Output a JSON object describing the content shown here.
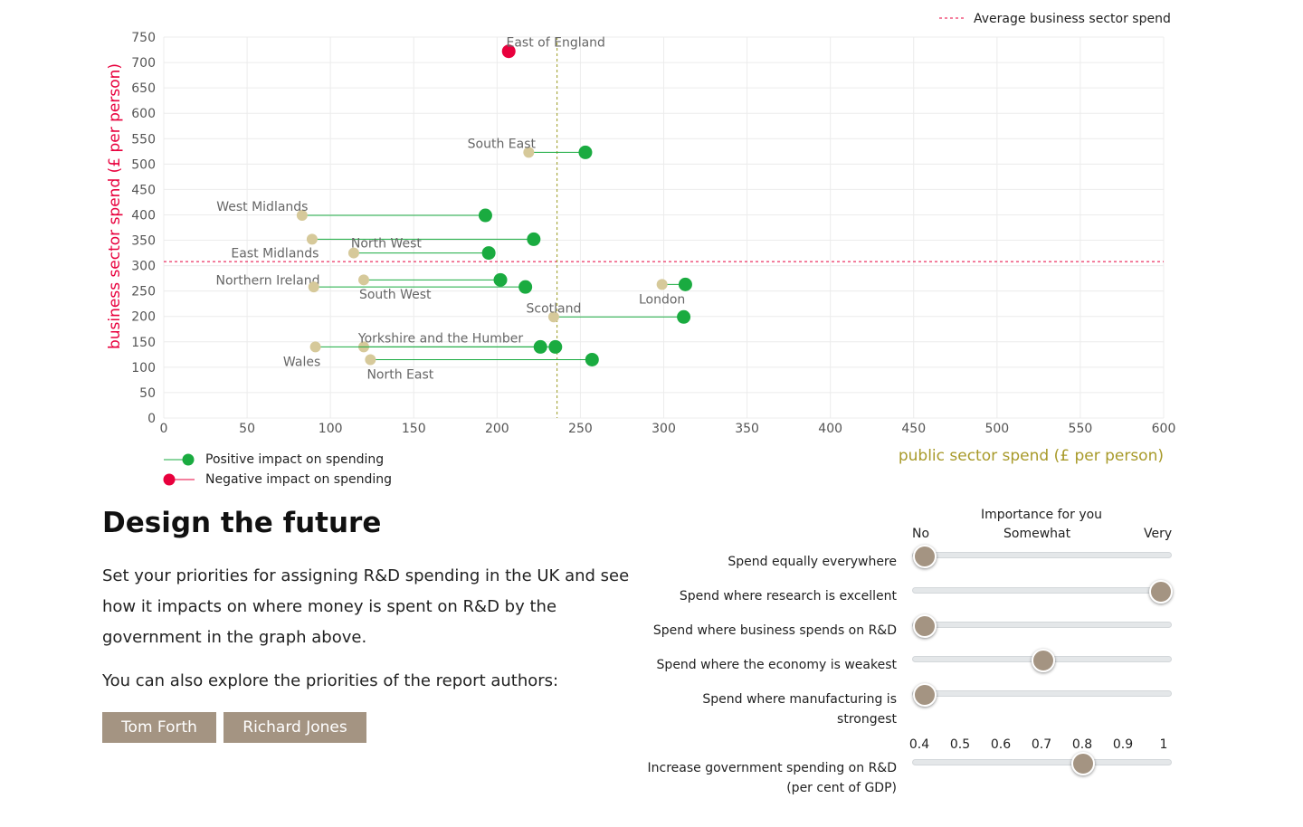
{
  "chart_data": {
    "type": "scatter",
    "xlabel": "public sector spend (£ per person)",
    "ylabel": "business sector spend (£ per person)",
    "xlim": [
      0,
      600
    ],
    "ylim": [
      0,
      750
    ],
    "x_ticks": [
      0,
      50,
      100,
      150,
      200,
      250,
      300,
      350,
      400,
      450,
      500,
      550,
      600
    ],
    "y_ticks": [
      0,
      50,
      100,
      150,
      200,
      250,
      300,
      350,
      400,
      450,
      500,
      550,
      600,
      650,
      700,
      750
    ],
    "grid": true,
    "average_public_spend": 236,
    "average_business_spend": 308,
    "regions": [
      {
        "name": "East of England",
        "y": 722,
        "x_from": 207,
        "x_to": 207,
        "impact": "negative"
      },
      {
        "name": "South East",
        "y": 523,
        "x_from": 219,
        "x_to": 253,
        "impact": "positive"
      },
      {
        "name": "West Midlands",
        "y": 399,
        "x_from": 83,
        "x_to": 193,
        "impact": "positive"
      },
      {
        "name": "North West",
        "y": 352,
        "x_from": 89,
        "x_to": 222,
        "impact": "positive"
      },
      {
        "name": "East Midlands",
        "y": 325,
        "x_from": 114,
        "x_to": 195,
        "impact": "positive"
      },
      {
        "name": "Northern Ireland",
        "y": 272,
        "x_from": 120,
        "x_to": 202,
        "impact": "positive"
      },
      {
        "name": "South West",
        "y": 258,
        "x_from": 90,
        "x_to": 217,
        "impact": "positive"
      },
      {
        "name": "London",
        "y": 263,
        "x_from": 299,
        "x_to": 313,
        "impact": "positive"
      },
      {
        "name": "Scotland",
        "y": 199,
        "x_from": 234,
        "x_to": 312,
        "impact": "positive"
      },
      {
        "name": "Yorkshire and the Humber",
        "y": 140,
        "x_from": 120,
        "x_to": 235,
        "impact": "positive"
      },
      {
        "name": "Wales",
        "y": 140,
        "x_from": 91,
        "x_to": 226,
        "impact": "positive"
      },
      {
        "name": "North East",
        "y": 115,
        "x_from": 124,
        "x_to": 257,
        "impact": "positive"
      }
    ],
    "legend": {
      "average_business": "Average business sector spend",
      "positive": "Positive impact on spending",
      "negative": "Negative impact on spending"
    },
    "colors": {
      "positive": "#1aab40",
      "negative": "#e8003d",
      "origin": "#d6c99a",
      "average_business_line": "#e8003d",
      "average_public_line": "#9a9a20",
      "ylabel": "#e8003d",
      "xlabel": "#a89a2a"
    }
  },
  "section": {
    "heading": "Design the future",
    "intro": "Set your priorities for assigning R&D spending in the UK and see how it impacts on where money is spent on R&D by the government in the graph above.",
    "authors_prompt": "You can also explore the priorities of the report authors:",
    "authors": [
      "Tom Forth",
      "Richard Jones"
    ]
  },
  "importance": {
    "title": "Importance for you",
    "scale": {
      "low": "No",
      "mid": "Somewhat",
      "high": "Very"
    },
    "sliders": [
      {
        "label": "Spend equally everywhere",
        "value": 0.0
      },
      {
        "label": "Spend where research is excellent",
        "value": 1.0
      },
      {
        "label": "Spend where business spends on R&D",
        "value": 0.0
      },
      {
        "label": "Spend where the economy is weakest",
        "value": 0.5
      },
      {
        "label": "Spend where manufacturing is strongest",
        "value": 0.0
      }
    ]
  },
  "gdp": {
    "label": "Increase government spending on R&D (per cent of GDP)",
    "ticks": [
      "0.4",
      "0.5",
      "0.6",
      "0.7",
      "0.8",
      "0.9",
      "1"
    ],
    "min": 0.4,
    "max": 1.0,
    "value": 0.8
  },
  "colors": {
    "accent_button": "#a49482",
    "slider_track": "#e4e7e9"
  }
}
